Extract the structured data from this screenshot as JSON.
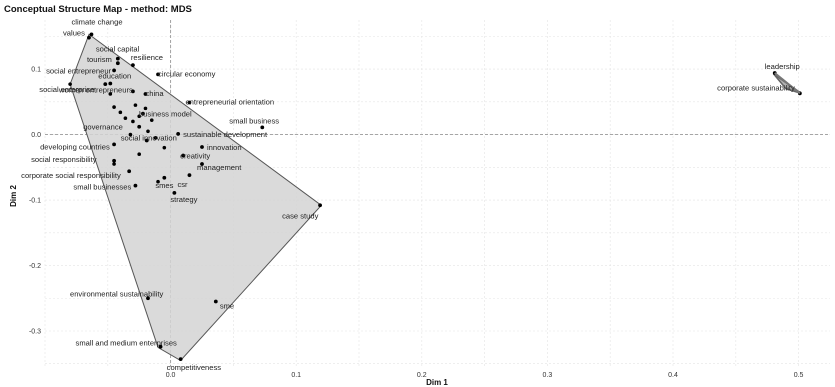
{
  "chart_data": {
    "type": "scatter",
    "title": "Conceptual Structure Map - method: MDS",
    "xlabel": "Dim 1",
    "ylabel": "Dim 2",
    "xlim": [
      -0.1,
      0.525
    ],
    "ylim": [
      -0.355,
      0.175
    ],
    "x_ticks": [
      0.0,
      0.1,
      0.2,
      0.3,
      0.4,
      0.5
    ],
    "x_tick_labels": [
      "0.0",
      "0.1",
      "0.2",
      "0.3",
      "0.4",
      "0.5"
    ],
    "y_ticks": [
      -0.3,
      -0.2,
      -0.1,
      0.0,
      0.1
    ],
    "y_tick_labels": [
      "-0.3",
      "-0.2",
      "-0.1",
      "0.0",
      "0.1"
    ],
    "grid": true,
    "colors": {
      "cluster1_fill": "#d3d3d3",
      "cluster1_stroke": "#555555",
      "cluster2_fill": "#aaaaaa",
      "point": "#000000",
      "reference_line": "#999999"
    },
    "clusters": [
      {
        "hull": [
          [
            -0.065,
            0.153
          ],
          [
            0.12,
            -0.108
          ],
          [
            0.008,
            -0.345
          ],
          [
            -0.01,
            -0.325
          ],
          [
            -0.08,
            0.077
          ]
        ]
      },
      {
        "hull": [
          [
            0.48,
            0.093
          ],
          [
            0.502,
            0.063
          ],
          [
            0.49,
            0.07
          ]
        ]
      }
    ],
    "points": [
      {
        "label": "climate change",
        "x": -0.063,
        "y": 0.153
      },
      {
        "label": "values",
        "x": -0.065,
        "y": 0.148
      },
      {
        "label": "social capital",
        "x": -0.042,
        "y": 0.116
      },
      {
        "label": "resilience",
        "x": -0.03,
        "y": 0.106
      },
      {
        "label": "tourism",
        "x": -0.042,
        "y": 0.109
      },
      {
        "label": "circular economy",
        "x": -0.01,
        "y": 0.092
      },
      {
        "label": "social entrepreneur",
        "x": -0.045,
        "y": 0.098
      },
      {
        "label": "social enterprise",
        "x": -0.052,
        "y": 0.077
      },
      {
        "label": "education",
        "x": -0.048,
        "y": 0.078
      },
      {
        "label": "china",
        "x": -0.02,
        "y": 0.062
      },
      {
        "label": "women entrepreneurs",
        "x": -0.03,
        "y": 0.066
      },
      {
        "label": "entrepreneurial orientation",
        "x": 0.015,
        "y": 0.049
      },
      {
        "label": "business model",
        "x": -0.022,
        "y": 0.032
      },
      {
        "label": "small business",
        "x": 0.073,
        "y": 0.011
      },
      {
        "label": "sustainable development",
        "x": 0.006,
        "y": 0.001
      },
      {
        "label": "governance",
        "x": -0.025,
        "y": 0.012
      },
      {
        "label": "social innovation",
        "x": -0.019,
        "y": -0.009
      },
      {
        "label": "innovation",
        "x": 0.025,
        "y": -0.019
      },
      {
        "label": "developing countries",
        "x": -0.045,
        "y": -0.015
      },
      {
        "label": "creativity",
        "x": 0.01,
        "y": -0.032
      },
      {
        "label": "social responsibility",
        "x": -0.045,
        "y": -0.04
      },
      {
        "label": "management",
        "x": 0.025,
        "y": -0.045
      },
      {
        "label": "corporate social responsibility",
        "x": -0.033,
        "y": -0.056
      },
      {
        "label": "csr",
        "x": 0.015,
        "y": -0.062
      },
      {
        "label": "smes",
        "x": -0.005,
        "y": -0.066
      },
      {
        "label": "small businesses",
        "x": -0.028,
        "y": -0.078
      },
      {
        "label": "strategy",
        "x": 0.003,
        "y": -0.089
      },
      {
        "label": "case study",
        "x": 0.119,
        "y": -0.108
      },
      {
        "label": "environmental sustainability",
        "x": -0.018,
        "y": -0.25
      },
      {
        "label": "sme",
        "x": 0.036,
        "y": -0.255
      },
      {
        "label": "small and medium enterprises",
        "x": -0.008,
        "y": -0.324
      },
      {
        "label": "competitiveness",
        "x": 0.008,
        "y": -0.343
      },
      {
        "label": "leadership",
        "x": 0.481,
        "y": 0.094
      },
      {
        "label": "corporate sustainability",
        "x": 0.501,
        "y": 0.063
      }
    ],
    "extra_points": [
      [
        -0.08,
        0.077
      ],
      [
        -0.048,
        0.062
      ],
      [
        -0.045,
        0.042
      ],
      [
        -0.04,
        0.034
      ],
      [
        -0.036,
        0.025
      ],
      [
        -0.03,
        0.02
      ],
      [
        -0.028,
        0.045
      ],
      [
        -0.025,
        0.028
      ],
      [
        -0.02,
        0.04
      ],
      [
        -0.015,
        0.022
      ],
      [
        -0.018,
        0.005
      ],
      [
        -0.032,
        0.0
      ],
      [
        -0.012,
        -0.005
      ],
      [
        -0.005,
        -0.02
      ],
      [
        -0.045,
        -0.045
      ],
      [
        -0.01,
        -0.072
      ],
      [
        -0.025,
        -0.03
      ]
    ]
  }
}
